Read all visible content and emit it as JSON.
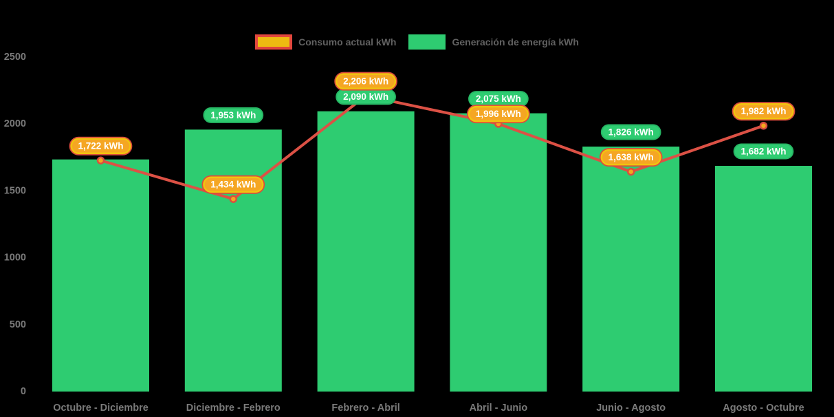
{
  "page": {
    "background": "#000000",
    "axis_text_color": "#7A7A7A",
    "legend_text_color": "#616161"
  },
  "legend": {
    "position": "top",
    "items": [
      {
        "label": "Consumo actual kWh",
        "swatch_fill": "#EDBB11",
        "swatch_border": "#E2473D"
      },
      {
        "label": "Generación de energía kWh",
        "swatch_fill": "#2ECC71",
        "swatch_border": "#2ECC71"
      }
    ]
  },
  "chart_data": {
    "type": "bar",
    "title": "",
    "xlabel": "",
    "ylabel": "",
    "categories": [
      "Octubre - Diciembre",
      "Diciembre - Febrero",
      "Febrero - Abril",
      "Abril - Junio",
      "Junio - Agosto",
      "Agosto - Octubre"
    ],
    "series": [
      {
        "name": "Generación de energía kWh",
        "type": "bar",
        "color": "#2ECC71",
        "badge_fill": "#2ECC71",
        "badge_border": "#27B865",
        "values": [
          1730,
          1953,
          2090,
          2075,
          1826,
          1682
        ],
        "labels": [
          "",
          "1,953 kWh",
          "2,090 kWh",
          "2,075 kWh",
          "1,826 kWh",
          "1,682 kWh"
        ]
      },
      {
        "name": "Consumo actual kWh",
        "type": "line",
        "color": "#DC5145",
        "point_fill": "#F3A81E",
        "point_border": "#D94F3F",
        "badge_fill": "#F5A623",
        "badge_border_inner": "#F1C40F",
        "badge_border_outer": "#DC4C3C",
        "values": [
          1722,
          1434,
          2206,
          1996,
          1638,
          1982
        ],
        "labels": [
          "1,722 kWh",
          "1,434 kWh",
          "2,206 kWh",
          "1,996 kWh",
          "1,638 kWh",
          "1,982 kWh"
        ]
      }
    ],
    "ylim": [
      0,
      2500
    ],
    "yticks": [
      0,
      500,
      1000,
      1500,
      2000,
      2500
    ],
    "grid": false,
    "legend_position": "top",
    "value_label_unit": "kWh",
    "badge_text_color": "#FFFFFF"
  }
}
